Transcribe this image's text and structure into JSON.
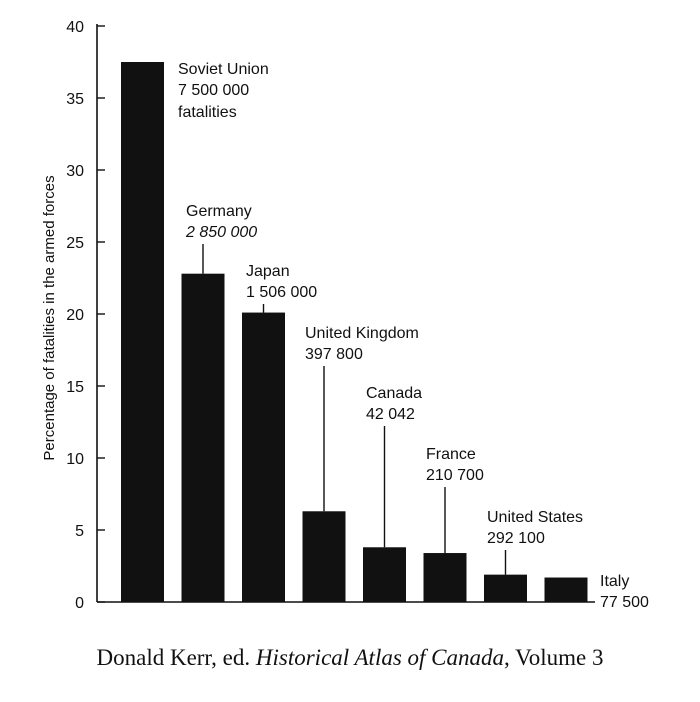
{
  "chart_data": {
    "type": "bar",
    "ylabel": "Percentage of fatalities in the armed forces",
    "xlabel": "",
    "ylim": [
      0,
      40
    ],
    "yticks": [
      0,
      5,
      10,
      15,
      20,
      25,
      30,
      35,
      40
    ],
    "grid": false,
    "bar_color": "#111111",
    "categories": [
      "Soviet Union",
      "Germany",
      "Japan",
      "United Kingdom",
      "Canada",
      "France",
      "United States",
      "Italy"
    ],
    "values": [
      37.5,
      22.8,
      20.1,
      6.3,
      3.8,
      3.4,
      1.9,
      1.7
    ],
    "fatalities": [
      "7 500 000",
      "2 850 000",
      "1 506 000",
      "397 800",
      "42 042",
      "210 700",
      "292 100",
      "77 500"
    ],
    "fatalities_suffix": "fatalities"
  },
  "caption": {
    "author": "Donald Kerr, ed. ",
    "title": "Historical Atlas of Canada",
    "volume": ", Volume 3"
  }
}
